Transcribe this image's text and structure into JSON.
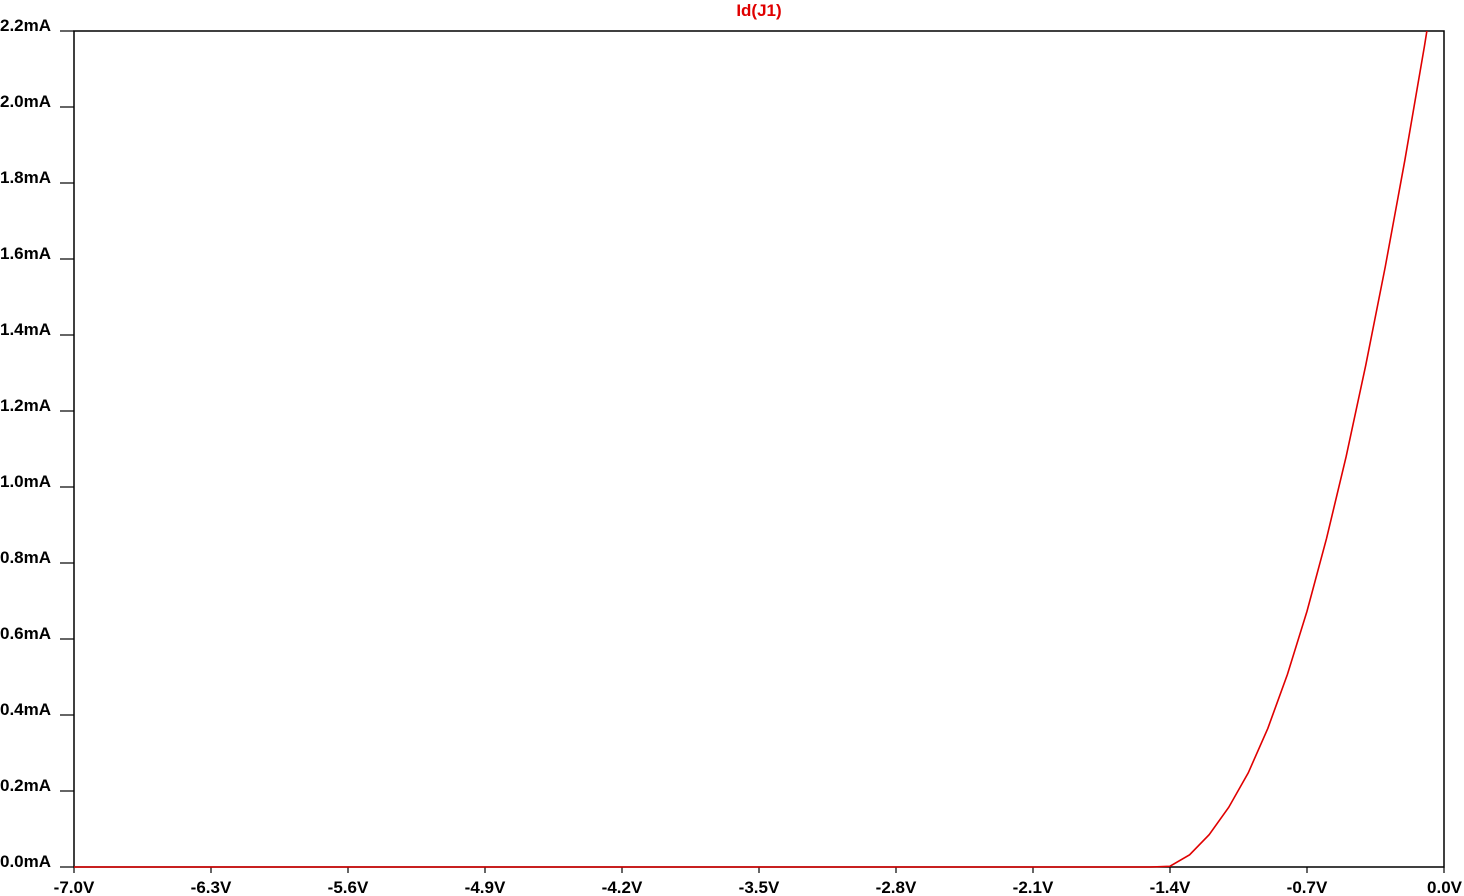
{
  "chart_data": {
    "type": "line",
    "title": "Id(J1)",
    "xlabel": "",
    "ylabel": "",
    "xlim": [
      -7.0,
      0.0
    ],
    "ylim": [
      0.0,
      2.2
    ],
    "grid": false,
    "x_ticks": [
      {
        "value": -7.0,
        "label": "-7.0V"
      },
      {
        "value": -6.3,
        "label": "-6.3V"
      },
      {
        "value": -5.6,
        "label": "-5.6V"
      },
      {
        "value": -4.9,
        "label": "-4.9V"
      },
      {
        "value": -4.2,
        "label": "-4.2V"
      },
      {
        "value": -3.5,
        "label": "-3.5V"
      },
      {
        "value": -2.8,
        "label": "-2.8V"
      },
      {
        "value": -2.1,
        "label": "-2.1V"
      },
      {
        "value": -1.4,
        "label": "-1.4V"
      },
      {
        "value": -0.7,
        "label": "-0.7V"
      },
      {
        "value": 0.0,
        "label": "0.0V"
      }
    ],
    "y_ticks": [
      {
        "value": 0.0,
        "label": "0.0mA"
      },
      {
        "value": 0.2,
        "label": "0.2mA"
      },
      {
        "value": 0.4,
        "label": "0.4mA"
      },
      {
        "value": 0.6,
        "label": "0.6mA"
      },
      {
        "value": 0.8,
        "label": "0.8mA"
      },
      {
        "value": 1.0,
        "label": "1.0mA"
      },
      {
        "value": 1.2,
        "label": "1.2mA"
      },
      {
        "value": 1.4,
        "label": "1.4mA"
      },
      {
        "value": 1.6,
        "label": "1.6mA"
      },
      {
        "value": 1.8,
        "label": "1.8mA"
      },
      {
        "value": 2.0,
        "label": "2.0mA"
      },
      {
        "value": 2.2,
        "label": "2.2mA"
      }
    ],
    "series": [
      {
        "name": "Id(J1)",
        "color": "#e00000",
        "x": [
          -7.0,
          -1.5,
          -1.4,
          -1.3,
          -1.2,
          -1.1,
          -1.0,
          -0.9,
          -0.8,
          -0.7,
          -0.6,
          -0.5,
          -0.4,
          -0.3,
          -0.2,
          -0.1,
          0.0
        ],
        "y": [
          0.0,
          0.0,
          0.002,
          0.032,
          0.085,
          0.157,
          0.248,
          0.365,
          0.507,
          0.673,
          0.865,
          1.08,
          1.32,
          1.58,
          1.86,
          2.16,
          2.48
        ]
      }
    ],
    "colors": {
      "axes": "#000000",
      "title": "#e00000",
      "background": "#ffffff"
    }
  }
}
